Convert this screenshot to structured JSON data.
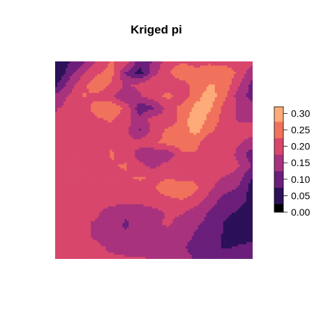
{
  "chart_data": {
    "type": "heatmap",
    "title": "Kriged pi",
    "xlabel": "",
    "ylabel": "",
    "legend": {
      "placement": "right",
      "ticks": [
        "0.00",
        "0.05",
        "0.10",
        "0.15",
        "0.20",
        "0.25",
        "0.30"
      ],
      "range": [
        0.0,
        0.32
      ],
      "breaks": [
        0.0,
        0.025,
        0.075,
        0.125,
        0.175,
        0.225,
        0.275,
        0.32
      ],
      "colors": [
        "#000004",
        "#2c1158",
        "#6b1f7b",
        "#a8327d",
        "#d8466c",
        "#f1725c",
        "#fdab78",
        "#fcf0b8"
      ]
    },
    "grid": [
      [
        0.03,
        0.07,
        0.11,
        0.19,
        0.23,
        0.21,
        0.1,
        0.13,
        0.21,
        0.22,
        0.21,
        0.22,
        0.21,
        0.21,
        0.2
      ],
      [
        0.02,
        0.1,
        0.17,
        0.22,
        0.24,
        0.12,
        0.05,
        0.16,
        0.22,
        0.25,
        0.24,
        0.24,
        0.25,
        0.22,
        0.13
      ],
      [
        0.06,
        0.15,
        0.21,
        0.26,
        0.22,
        0.17,
        0.19,
        0.22,
        0.2,
        0.21,
        0.24,
        0.28,
        0.26,
        0.18,
        0.11
      ],
      [
        0.14,
        0.18,
        0.23,
        0.21,
        0.18,
        0.13,
        0.17,
        0.2,
        0.24,
        0.19,
        0.26,
        0.3,
        0.24,
        0.15,
        0.1
      ],
      [
        0.17,
        0.19,
        0.2,
        0.25,
        0.27,
        0.21,
        0.09,
        0.12,
        0.2,
        0.24,
        0.29,
        0.28,
        0.21,
        0.17,
        0.15
      ],
      [
        0.18,
        0.19,
        0.2,
        0.22,
        0.23,
        0.2,
        0.14,
        0.2,
        0.18,
        0.25,
        0.31,
        0.26,
        0.2,
        0.17,
        0.17
      ],
      [
        0.18,
        0.18,
        0.19,
        0.22,
        0.21,
        0.19,
        0.12,
        0.19,
        0.24,
        0.26,
        0.29,
        0.23,
        0.2,
        0.19,
        0.19
      ],
      [
        0.18,
        0.18,
        0.19,
        0.21,
        0.22,
        0.18,
        0.2,
        0.22,
        0.24,
        0.26,
        0.24,
        0.19,
        0.21,
        0.18,
        0.16
      ],
      [
        0.18,
        0.18,
        0.19,
        0.2,
        0.23,
        0.21,
        0.15,
        0.13,
        0.14,
        0.21,
        0.22,
        0.19,
        0.21,
        0.16,
        0.09
      ],
      [
        0.18,
        0.18,
        0.19,
        0.2,
        0.22,
        0.23,
        0.19,
        0.16,
        0.2,
        0.22,
        0.21,
        0.18,
        0.21,
        0.18,
        0.12
      ],
      [
        0.18,
        0.18,
        0.18,
        0.19,
        0.2,
        0.22,
        0.23,
        0.22,
        0.22,
        0.21,
        0.22,
        0.2,
        0.17,
        0.15,
        0.07
      ],
      [
        0.18,
        0.18,
        0.18,
        0.19,
        0.19,
        0.2,
        0.21,
        0.22,
        0.25,
        0.27,
        0.23,
        0.18,
        0.14,
        0.12,
        0.05
      ],
      [
        0.18,
        0.18,
        0.18,
        0.18,
        0.19,
        0.19,
        0.2,
        0.2,
        0.21,
        0.22,
        0.2,
        0.15,
        0.1,
        0.09,
        0.06
      ],
      [
        0.18,
        0.18,
        0.18,
        0.18,
        0.16,
        0.13,
        0.13,
        0.16,
        0.18,
        0.18,
        0.15,
        0.12,
        0.09,
        0.07,
        0.05
      ],
      [
        0.18,
        0.18,
        0.18,
        0.17,
        0.14,
        0.12,
        0.14,
        0.17,
        0.18,
        0.16,
        0.13,
        0.11,
        0.07,
        0.03,
        0.04
      ],
      [
        0.18,
        0.18,
        0.18,
        0.17,
        0.14,
        0.13,
        0.14,
        0.16,
        0.16,
        0.14,
        0.12,
        0.1,
        0.07,
        0.05,
        0.06
      ],
      [
        0.18,
        0.18,
        0.18,
        0.18,
        0.17,
        0.16,
        0.16,
        0.16,
        0.15,
        0.13,
        0.11,
        0.09,
        0.07,
        0.08,
        0.09
      ],
      [
        0.18,
        0.18,
        0.18,
        0.18,
        0.18,
        0.18,
        0.18,
        0.17,
        0.16,
        0.14,
        0.12,
        0.11,
        0.11,
        0.11,
        0.12
      ]
    ]
  }
}
